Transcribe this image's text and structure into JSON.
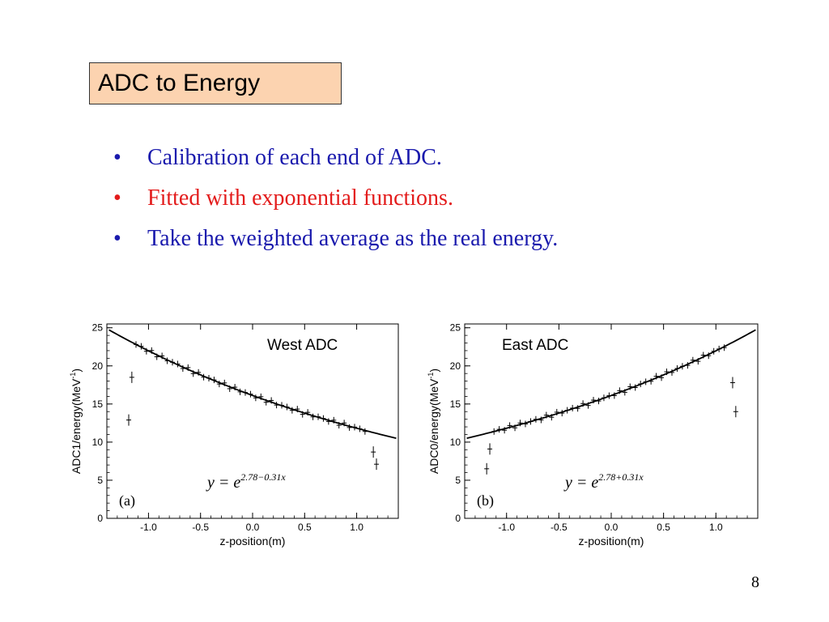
{
  "slide": {
    "title": "ADC to Energy",
    "bullets": [
      {
        "text": "Calibration of each end of ADC.",
        "color": "#1a1aad"
      },
      {
        "text": "Fitted with exponential functions.",
        "color": "#e31b1b"
      },
      {
        "text": "Take the weighted average as the real energy.",
        "color": "#1a1aad"
      }
    ],
    "bullet_symbol": "•",
    "page_number": "8"
  },
  "chart_data": [
    {
      "type": "scatter",
      "panel_label": "West ADC",
      "panel_tag": "(a)",
      "formula_base": "y = e",
      "formula_exp": "2.78−0.31x",
      "xlabel": "z-position(m)",
      "ylabel_main": "ADC1/energy(MeV",
      "ylabel_sup": "-1",
      "ylabel_end": ")",
      "xlim": [
        -1.4,
        1.4
      ],
      "ylim": [
        0,
        25.5
      ],
      "xticks": [
        -1.0,
        -0.5,
        0.0,
        0.5,
        1.0
      ],
      "xtick_labels": [
        "-1.0",
        "-0.5",
        "0.0",
        "0.5",
        "1.0"
      ],
      "yticks": [
        0,
        5,
        10,
        15,
        20,
        25
      ],
      "ytick_labels": [
        "0",
        "5",
        "10",
        "15",
        "20",
        "25"
      ],
      "fit": {
        "a": 2.78,
        "b": -0.31,
        "x_range": [
          -1.38,
          1.38
        ]
      },
      "outliers": [
        {
          "x": -1.19,
          "y": 12.9
        },
        {
          "x": -1.16,
          "y": 18.5
        },
        {
          "x": 1.16,
          "y": 8.7
        },
        {
          "x": 1.19,
          "y": 7.1
        }
      ],
      "points_range": [
        -1.12,
        1.12
      ],
      "points_step": 0.05
    },
    {
      "type": "scatter",
      "panel_label": "East ADC",
      "panel_tag": "(b)",
      "formula_base": "y = e",
      "formula_exp": "2.78+0.31x",
      "xlabel": "z-position(m)",
      "ylabel_main": "ADC0/energy(MeV",
      "ylabel_sup": "-1",
      "ylabel_end": ")",
      "xlim": [
        -1.4,
        1.4
      ],
      "ylim": [
        0,
        25.5
      ],
      "xticks": [
        -1.0,
        -0.5,
        0.0,
        0.5,
        1.0
      ],
      "xtick_labels": [
        "-1.0",
        "-0.5",
        "0.0",
        "0.5",
        "1.0"
      ],
      "yticks": [
        0,
        5,
        10,
        15,
        20,
        25
      ],
      "ytick_labels": [
        "0",
        "5",
        "10",
        "15",
        "20",
        "25"
      ],
      "fit": {
        "a": 2.78,
        "b": 0.31,
        "x_range": [
          -1.38,
          1.38
        ]
      },
      "outliers": [
        {
          "x": -1.19,
          "y": 6.5
        },
        {
          "x": -1.16,
          "y": 9.1
        },
        {
          "x": 1.16,
          "y": 17.8
        },
        {
          "x": 1.19,
          "y": 14.0
        }
      ],
      "points_range": [
        -1.12,
        1.12
      ],
      "points_step": 0.05
    }
  ]
}
